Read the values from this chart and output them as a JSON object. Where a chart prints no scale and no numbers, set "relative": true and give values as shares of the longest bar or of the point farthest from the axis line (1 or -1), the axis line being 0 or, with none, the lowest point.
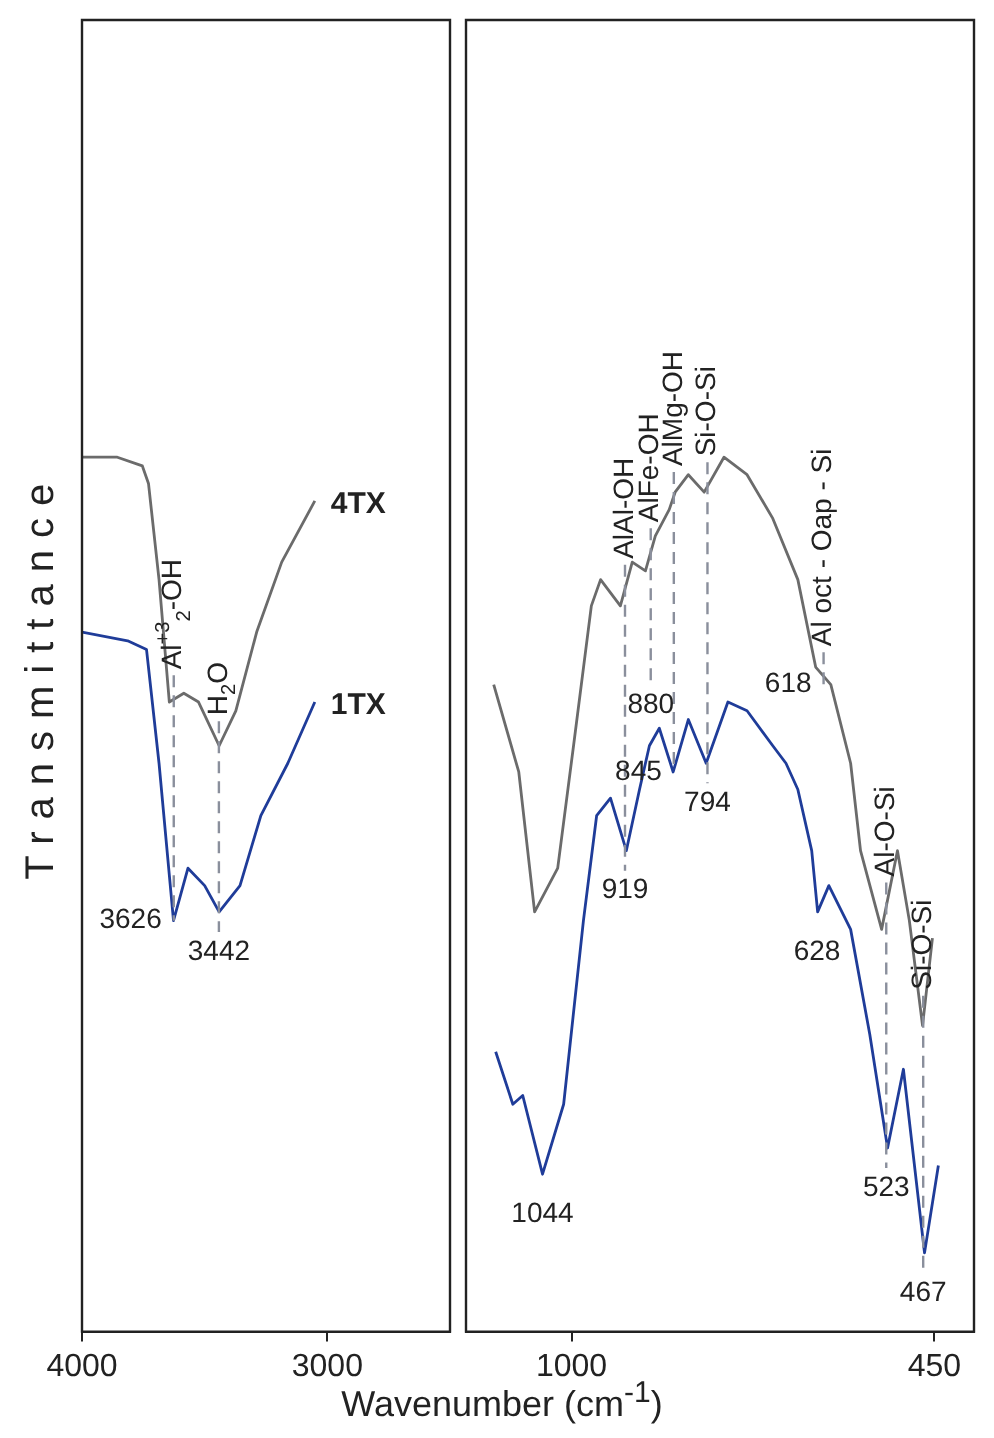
{
  "chart_data": [
    {
      "type": "line",
      "relative": true,
      "ylabel": "Transmittance",
      "xlim": [
        4000,
        2500
      ],
      "xticks": [
        4000,
        3000
      ],
      "tick_labels": "x",
      "marker": "none",
      "line_style": "solid",
      "legend": false,
      "grid": false,
      "series": [
        {
          "name": "4TX",
          "color": "#6b6b6b",
          "x": [
            4000,
            3856,
            3754,
            3729,
            3686,
            3644,
            3585,
            3525,
            3441,
            3373,
            3288,
            3186,
            3051
          ],
          "values": [
            1.0,
            1.0,
            0.99,
            0.97,
            0.86,
            0.72,
            0.73,
            0.72,
            0.67,
            0.71,
            0.8,
            0.88,
            0.95
          ]
        },
        {
          "name": "1TX",
          "color": "#1f3c99",
          "x": [
            4000,
            3814,
            3737,
            3686,
            3627,
            3568,
            3500,
            3441,
            3356,
            3271,
            3161,
            3051
          ],
          "values": [
            0.8,
            0.79,
            0.78,
            0.65,
            0.47,
            0.53,
            0.51,
            0.48,
            0.51,
            0.59,
            0.65,
            0.72
          ]
        }
      ],
      "ref_lines": [
        {
          "axis": "x",
          "value": 3626,
          "label": "Al$^{+3}$$_{2}$-OH",
          "color": "#8a8f9c",
          "line_style": "dashed"
        },
        {
          "axis": "x",
          "value": 3442,
          "label": "H$_{2}$O",
          "color": "#8a8f9c",
          "line_style": "dashed"
        }
      ],
      "annotations": [
        {
          "text": "3626",
          "x": 3626,
          "y": 0.47
        },
        {
          "text": "3442",
          "x": 3442,
          "y": 0.48
        }
      ]
    },
    {
      "type": "line",
      "relative": true,
      "xlabel": "Wavenumber (cm$^{-1}$)",
      "xlim": [
        1160,
        390
      ],
      "xticks": [
        1000,
        450
      ],
      "tick_labels": "x",
      "marker": "none",
      "line_style": "solid",
      "legend": false,
      "grid": false,
      "series": [
        {
          "color": "#6b6b6b",
          "x": [
            1118,
            1080,
            1056,
            1021,
            997,
            970,
            956,
            926,
            908,
            888,
            873,
            852,
            843,
            823,
            799,
            769,
            734,
            695,
            657,
            630,
            607,
            577,
            562,
            530,
            506,
            488,
            468,
            453
          ],
          "values": [
            0.74,
            0.64,
            0.48,
            0.53,
            0.67,
            0.83,
            0.86,
            0.83,
            0.88,
            0.87,
            0.91,
            0.94,
            0.96,
            0.98,
            0.96,
            1.0,
            0.98,
            0.93,
            0.86,
            0.76,
            0.74,
            0.65,
            0.55,
            0.46,
            0.55,
            0.47,
            0.35,
            0.45
          ]
        },
        {
          "color": "#1f3c99",
          "x": [
            1115,
            1089,
            1074,
            1044,
            1012,
            982,
            962,
            941,
            917,
            897,
            882,
            867,
            846,
            823,
            796,
            763,
            734,
            695,
            675,
            657,
            636,
            627,
            610,
            577,
            548,
            521,
            497,
            465,
            444
          ],
          "values": [
            0.32,
            0.26,
            0.27,
            0.18,
            0.26,
            0.47,
            0.59,
            0.61,
            0.55,
            0.62,
            0.67,
            0.69,
            0.64,
            0.7,
            0.65,
            0.72,
            0.71,
            0.67,
            0.65,
            0.62,
            0.55,
            0.48,
            0.51,
            0.46,
            0.34,
            0.21,
            0.3,
            0.09,
            0.19
          ]
        }
      ],
      "ref_lines": [
        {
          "axis": "x",
          "value": 919,
          "label": "AlAl-OH",
          "color": "#8a8f9c",
          "line_style": "dashed"
        },
        {
          "axis": "x",
          "value": 880,
          "label": "AlFe-OH",
          "color": "#8a8f9c",
          "line_style": "dashed"
        },
        {
          "axis": "x",
          "value": 845,
          "label": "AlMg-OH",
          "color": "#8a8f9c",
          "line_style": "dashed"
        },
        {
          "axis": "x",
          "value": 794,
          "label": "Si-O-Si",
          "color": "#8a8f9c",
          "line_style": "dashed"
        },
        {
          "axis": "x",
          "value": 618,
          "label": "Al oct - Oap - Si",
          "color": "#8a8f9c",
          "line_style": "dashed"
        },
        {
          "axis": "x",
          "value": 523,
          "label": "Al-O-Si",
          "color": "#8a8f9c",
          "line_style": "dashed"
        },
        {
          "axis": "x",
          "value": 467,
          "label": "Si-O-Si",
          "color": "#8a8f9c",
          "line_style": "dashed"
        }
      ],
      "annotations": [
        {
          "text": "1044",
          "x": 1044,
          "y": 0.18
        },
        {
          "text": "919",
          "x": 919,
          "y": 0.55
        },
        {
          "text": "880",
          "x": 880,
          "y": 0.67
        },
        {
          "text": "845",
          "x": 845,
          "y": 0.64
        },
        {
          "text": "794",
          "x": 794,
          "y": 0.65
        },
        {
          "text": "628",
          "x": 628,
          "y": 0.48
        },
        {
          "text": "618",
          "x": 618,
          "y": 0.75
        },
        {
          "text": "523",
          "x": 523,
          "y": 0.21
        },
        {
          "text": "467",
          "x": 467,
          "y": 0.09
        }
      ]
    }
  ]
}
